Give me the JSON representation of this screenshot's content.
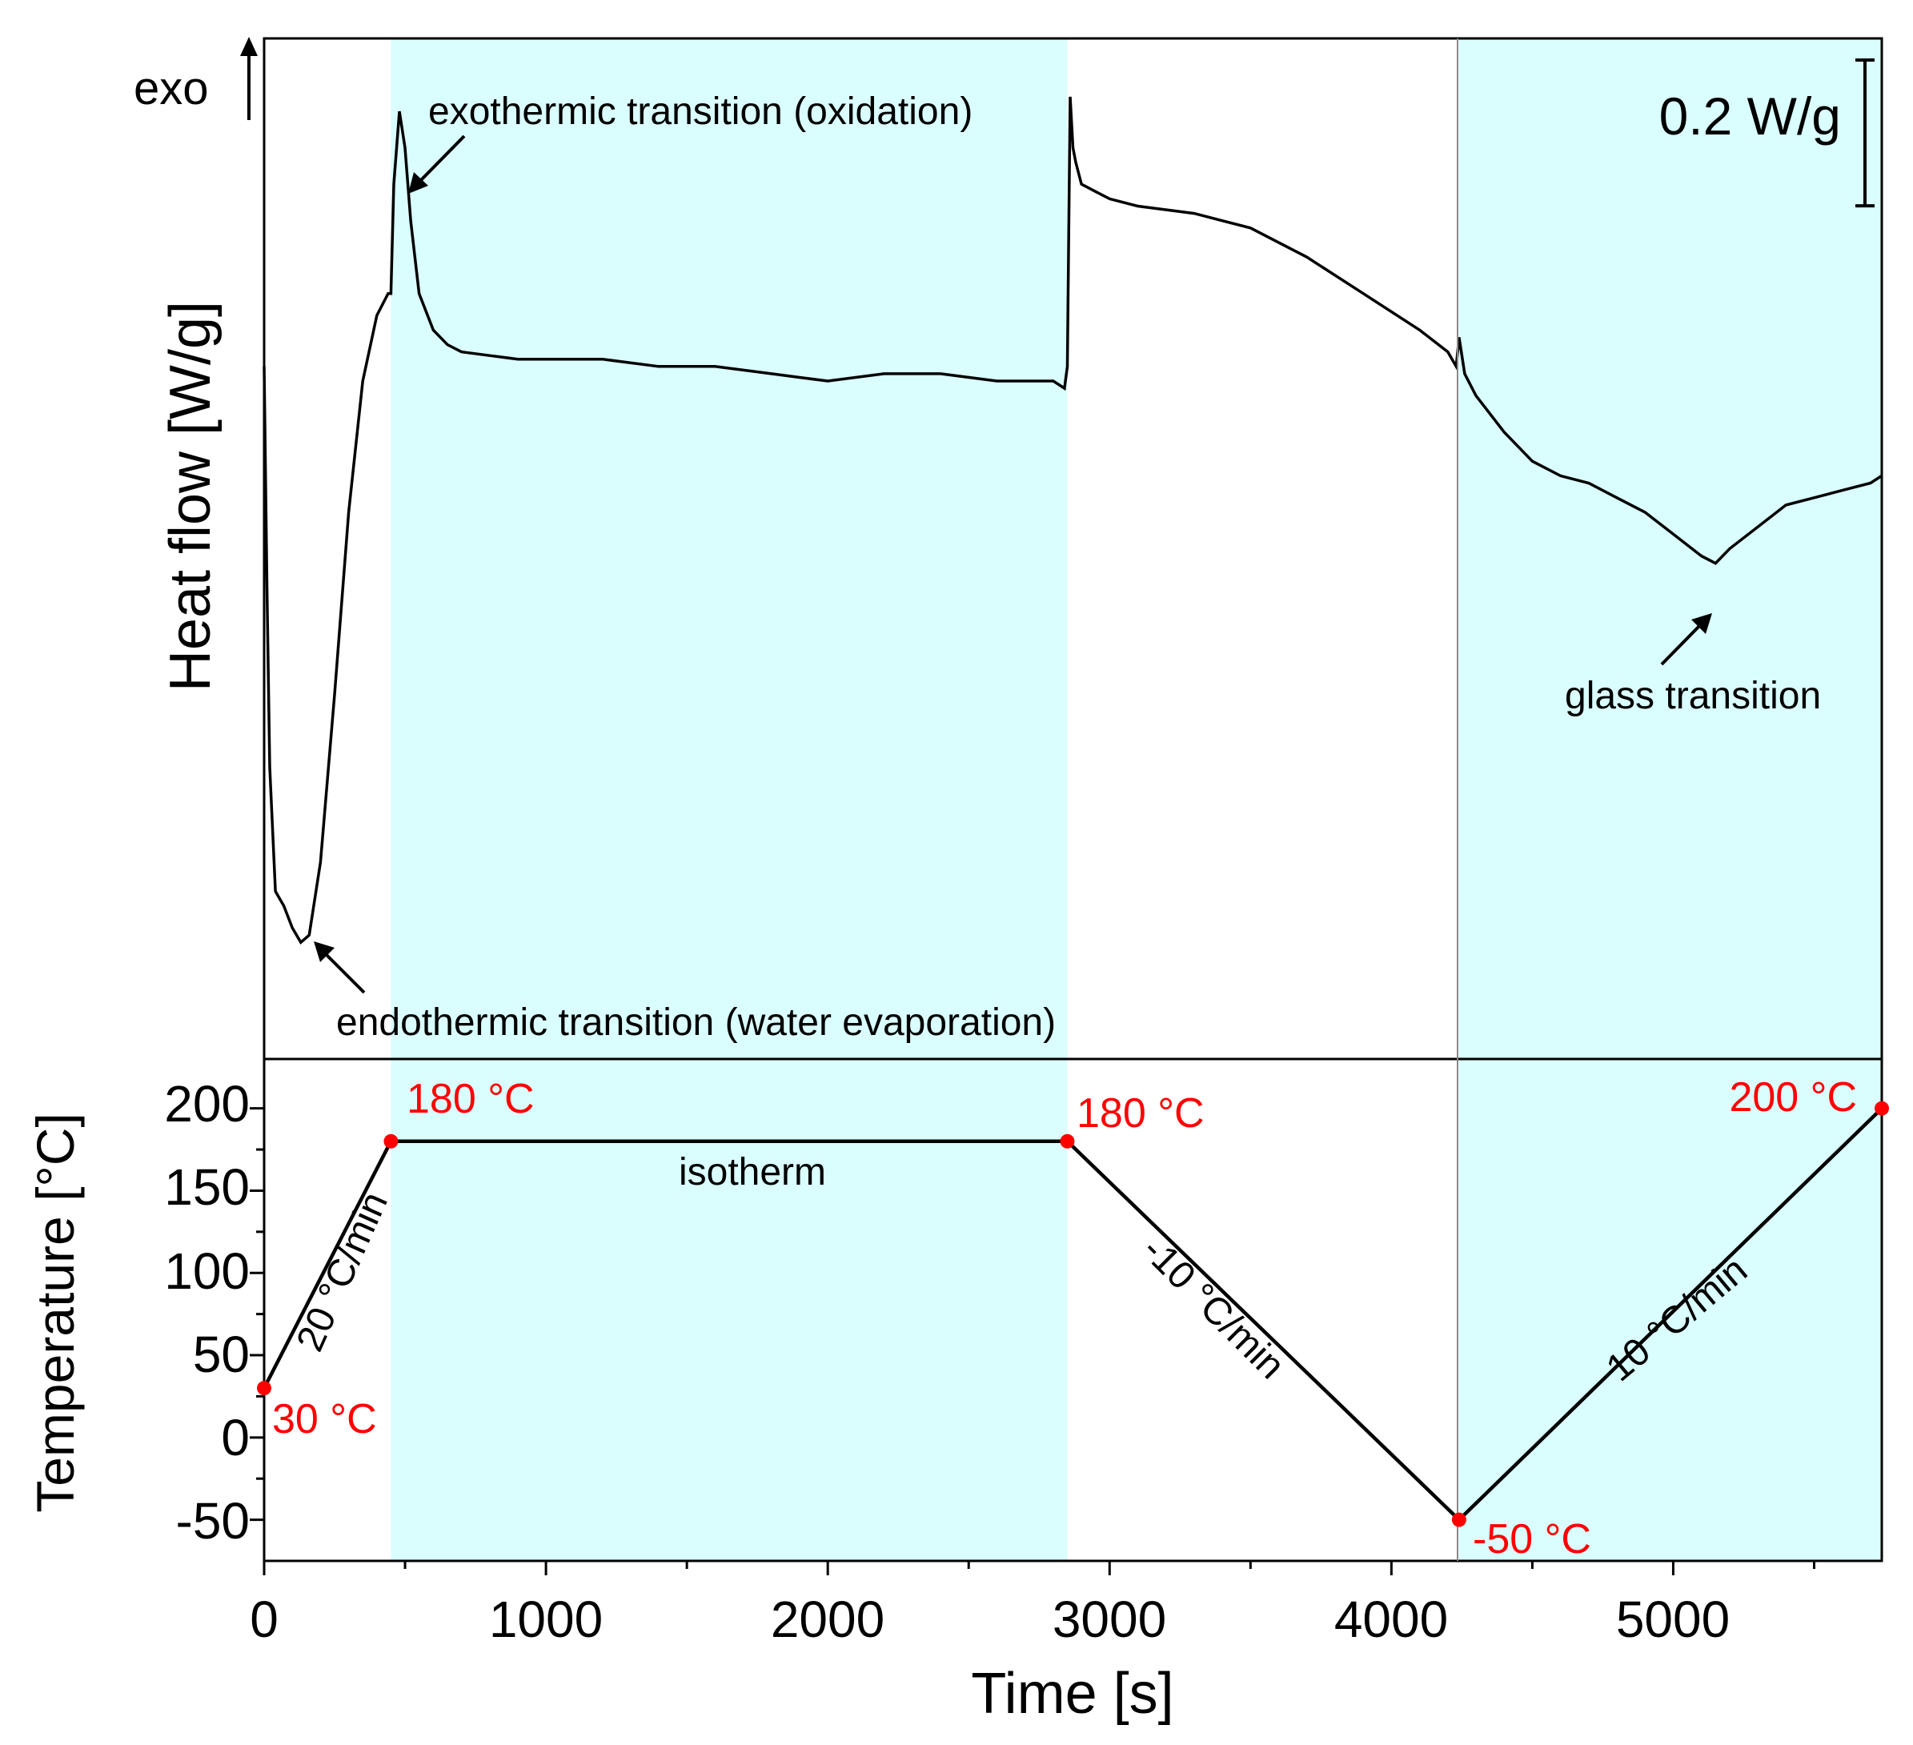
{
  "chart_data": [
    {
      "panel": "heat-flow",
      "type": "line",
      "ylabel": "Heat flow [W/g]",
      "xlim": [
        0,
        5740
      ],
      "ylim": [
        -0.95,
        0.45
      ],
      "exo_label": "exo",
      "scale_bar": {
        "label": "0.2 W/g",
        "value": 0.2
      },
      "shaded_regions": [
        [
          450,
          2850
        ],
        [
          4240,
          5740
        ]
      ],
      "series": [
        {
          "name": "Heat flow",
          "x": [
            0,
            10,
            20,
            40,
            70,
            100,
            130,
            160,
            200,
            250,
            300,
            350,
            400,
            440,
            450,
            460,
            480,
            500,
            520,
            550,
            600,
            650,
            700,
            800,
            900,
            1000,
            1200,
            1400,
            1600,
            1800,
            1900,
            2000,
            2200,
            2400,
            2600,
            2800,
            2840,
            2850,
            2860,
            2870,
            2880,
            2900,
            2950,
            3000,
            3100,
            3300,
            3500,
            3700,
            3900,
            4100,
            4200,
            4230,
            4240,
            4260,
            4300,
            4400,
            4500,
            4600,
            4700,
            4800,
            4900,
            5000,
            5100,
            5150,
            5200,
            5300,
            5400,
            5500,
            5600,
            5700,
            5740
          ],
          "values": [
            0.0,
            -0.3,
            -0.55,
            -0.72,
            -0.74,
            -0.77,
            -0.79,
            -0.78,
            -0.68,
            -0.45,
            -0.2,
            -0.02,
            0.07,
            0.1,
            0.1,
            0.25,
            0.35,
            0.3,
            0.2,
            0.1,
            0.05,
            0.03,
            0.02,
            0.015,
            0.01,
            0.01,
            0.01,
            0.0,
            0.0,
            -0.01,
            -0.015,
            -0.02,
            -0.01,
            -0.01,
            -0.02,
            -0.02,
            -0.03,
            0.0,
            0.37,
            0.3,
            0.28,
            0.25,
            0.24,
            0.23,
            0.22,
            0.21,
            0.19,
            0.15,
            0.1,
            0.05,
            0.02,
            0.0,
            0.04,
            -0.01,
            -0.04,
            -0.09,
            -0.13,
            -0.15,
            -0.16,
            -0.18,
            -0.2,
            -0.23,
            -0.26,
            -0.27,
            -0.25,
            -0.22,
            -0.19,
            -0.18,
            -0.17,
            -0.16,
            -0.15
          ]
        }
      ],
      "annotations": [
        {
          "text": "exothermic transition (oxidation)",
          "x": 480,
          "y": 0.35
        },
        {
          "text": "endothermic transition (water evaporation)",
          "x": 170,
          "y": -0.78
        },
        {
          "text": "glass transition",
          "x": 5150,
          "y": -0.27
        }
      ]
    },
    {
      "panel": "temperature",
      "type": "line",
      "xlabel": "Time [s]",
      "ylabel": "Temperature [°C]",
      "xlim": [
        0,
        5740
      ],
      "ylim": [
        -75,
        230
      ],
      "x_ticks": [
        0,
        1000,
        2000,
        3000,
        4000,
        5000
      ],
      "x_tick_labels": [
        "0",
        "1000",
        "2000",
        "3000",
        "4000",
        "5000"
      ],
      "y_ticks": [
        200,
        150,
        100,
        50,
        0,
        -50
      ],
      "y_tick_labels": [
        "200",
        "150",
        "100",
        "50",
        "0",
        "-50"
      ],
      "shaded_regions": [
        [
          450,
          2850
        ],
        [
          4240,
          5740
        ]
      ],
      "series": [
        {
          "name": "Temperature program",
          "x": [
            0,
            450,
            2850,
            4240,
            5740
          ],
          "values": [
            30,
            180,
            180,
            -50,
            200
          ]
        }
      ],
      "point_labels": [
        {
          "text": "30 °C",
          "x": 0,
          "y": 30
        },
        {
          "text": "180 °C",
          "x": 450,
          "y": 180
        },
        {
          "text": "180 °C",
          "x": 2850,
          "y": 180
        },
        {
          "text": "-50 °C",
          "x": 4240,
          "y": -50
        },
        {
          "text": "200 °C",
          "x": 5740,
          "y": 200
        }
      ],
      "segment_labels": [
        {
          "text": "20 °C/min"
        },
        {
          "text": "isotherm"
        },
        {
          "text": "-10 °C/min"
        },
        {
          "text": "10 °C/min"
        }
      ]
    }
  ]
}
